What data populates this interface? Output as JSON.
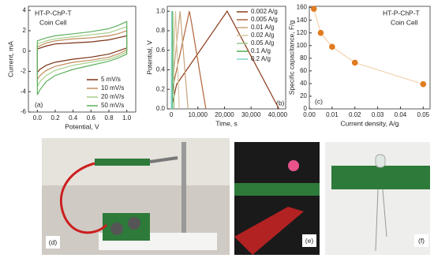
{
  "chart_data": [
    {
      "type": "line",
      "xlabel": "Potential, V",
      "ylabel": "Current, mA",
      "annotations": [
        "HT-P-ChP-T",
        "Coin Cell",
        "(a)"
      ],
      "xlim": [
        -0.1,
        1.1
      ],
      "xticks": [
        {
          "value": 0,
          "label": "0.0"
        },
        0.2,
        0.4,
        0.6,
        0.8,
        {
          "value": 1,
          "label": "1.0"
        }
      ],
      "ylim": [
        -6,
        4.4
      ],
      "yticks": [
        -6,
        -4,
        -2,
        0,
        2,
        4
      ],
      "legend": "lower right",
      "closed": true,
      "series": [
        {
          "name": "5 mV/s",
          "color": "#7b3216",
          "x": [
            0,
            0.1,
            0.2,
            0.4,
            0.6,
            0.8,
            0.9,
            1.0,
            1.0,
            0.9,
            0.8,
            0.6,
            0.4,
            0.2,
            0.1,
            0.03,
            0
          ],
          "values": [
            0.2,
            0.5,
            0.7,
            0.8,
            0.9,
            1.1,
            1.3,
            1.5,
            0.3,
            0,
            -0.3,
            -0.6,
            -0.8,
            -1.1,
            -1.4,
            -1.8,
            -2.1
          ]
        },
        {
          "name": "10 mV/s",
          "color": "#c08a5a",
          "x": [
            0,
            0.1,
            0.2,
            0.4,
            0.6,
            0.8,
            0.9,
            1.0,
            1.0,
            0.9,
            0.8,
            0.6,
            0.4,
            0.2,
            0.1,
            0.03,
            0
          ],
          "values": [
            0.4,
            0.8,
            1.0,
            1.2,
            1.3,
            1.5,
            1.7,
            2.0,
            0.1,
            -0.3,
            -0.6,
            -0.9,
            -1.1,
            -1.5,
            -1.9,
            -2.4,
            -2.8
          ]
        },
        {
          "name": "20 mV/s",
          "color": "#a8d08d",
          "x": [
            0,
            0.1,
            0.2,
            0.4,
            0.6,
            0.8,
            0.9,
            1.0,
            1.0,
            0.9,
            0.8,
            0.6,
            0.4,
            0.2,
            0.1,
            0.03,
            0
          ],
          "values": [
            0.7,
            1.0,
            1.2,
            1.4,
            1.6,
            1.8,
            2.1,
            2.4,
            -0.1,
            -0.5,
            -0.8,
            -1.1,
            -1.4,
            -1.9,
            -2.4,
            -3.0,
            -3.5
          ]
        },
        {
          "name": "50 mV/s",
          "color": "#5fae5f",
          "x": [
            0,
            0.1,
            0.2,
            0.4,
            0.6,
            0.8,
            0.9,
            1.0,
            1.0,
            0.9,
            0.8,
            0.6,
            0.4,
            0.2,
            0.1,
            0.03,
            0
          ],
          "values": [
            1.0,
            1.3,
            1.5,
            1.7,
            1.9,
            2.2,
            2.5,
            2.9,
            -0.3,
            -0.7,
            -1.0,
            -1.4,
            -1.8,
            -2.4,
            -3.0,
            -3.8,
            -4.3
          ]
        }
      ]
    },
    {
      "type": "line",
      "xlabel": "Time, s",
      "ylabel": "Potential, V",
      "annotations": [
        "(b)"
      ],
      "xlim": [
        -1500,
        43000
      ],
      "xticks": [
        0,
        {
          "value": 10000,
          "label": "10,000"
        },
        {
          "value": 20000,
          "label": "20,000"
        },
        {
          "value": 30000,
          "label": "30,000"
        },
        {
          "value": 40000,
          "label": "40,000"
        }
      ],
      "ylim": [
        0,
        1.05
      ],
      "yticks": [
        {
          "value": 0,
          "label": "0.0"
        },
        0.2,
        0.4,
        0.6,
        0.8,
        {
          "value": 1,
          "label": "1.0"
        }
      ],
      "legend": "upper right",
      "series": [
        {
          "name": "0.002 A/g",
          "color": "#8b3a1a",
          "x": [
            0,
            2000,
            21000,
            23000,
            40500
          ],
          "values": [
            0,
            0.25,
            1,
            0.9,
            0
          ]
        },
        {
          "name": "0.005 A/g",
          "color": "#b0643a",
          "x": [
            0,
            800,
            6800,
            7500,
            13000
          ],
          "values": [
            0,
            0.25,
            1,
            0.9,
            0
          ]
        },
        {
          "name": "0.01 A/g",
          "color": "#c8a27a",
          "x": [
            0,
            400,
            3300,
            3600,
            6300
          ],
          "values": [
            0,
            0.25,
            1,
            0.9,
            0
          ]
        },
        {
          "name": "0.02 A/g",
          "color": "#d8c4a0",
          "x": [
            0,
            1600,
            3000
          ],
          "values": [
            0,
            1,
            0
          ]
        },
        {
          "name": "0.05 A/g",
          "color": "#9dc88d",
          "x": [
            0,
            600,
            1100
          ],
          "values": [
            0,
            1,
            0
          ]
        },
        {
          "name": "0.1 A/g",
          "color": "#4caf50",
          "x": [
            0,
            300,
            500
          ],
          "values": [
            0,
            1,
            0
          ]
        },
        {
          "name": "0.2 A/g",
          "color": "#7fd3c8",
          "x": [
            0,
            150,
            250
          ],
          "values": [
            0,
            1,
            0
          ]
        }
      ]
    },
    {
      "type": "scatter",
      "xlabel": "Current density, A/g",
      "ylabel": "Specific capacitance, F/g",
      "annotations": [
        "HT-P-ChP-T",
        "Coin Cell",
        "(c)"
      ],
      "xlim": [
        0,
        0.053
      ],
      "xticks": [
        {
          "value": 0,
          "label": "0.00"
        },
        0.01,
        0.02,
        0.03,
        0.04,
        0.05
      ],
      "ylim": [
        0,
        162
      ],
      "yticks": [
        0,
        20,
        40,
        60,
        80,
        100,
        120,
        140,
        160
      ],
      "line": true,
      "color": "#e07b20",
      "x": [
        0.002,
        0.005,
        0.01,
        0.02,
        0.05
      ],
      "values": [
        158,
        120,
        98,
        73,
        39
      ]
    }
  ],
  "photos": {
    "labels": [
      "(d)",
      "(e)",
      "(f)"
    ]
  }
}
